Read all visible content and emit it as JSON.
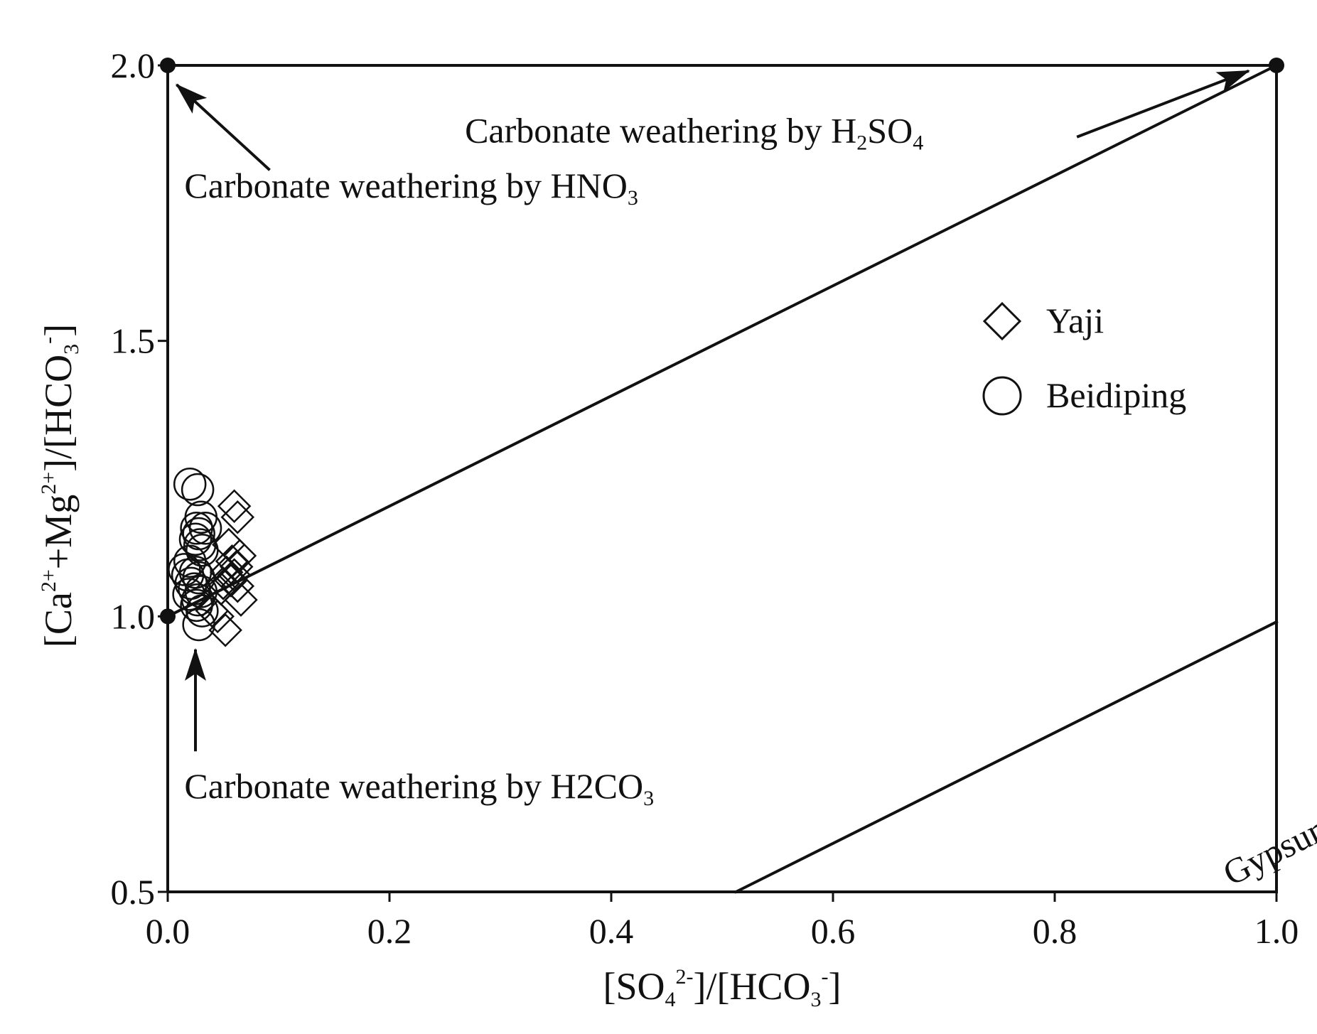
{
  "chart_data": {
    "type": "scatter",
    "xlabel": {
      "parts": [
        {
          "t": "[SO"
        },
        {
          "t": "4",
          "pos": "sub"
        },
        {
          "t": "2-",
          "pos": "sup"
        },
        {
          "t": "]/[HCO"
        },
        {
          "t": "3",
          "pos": "sub"
        },
        {
          "t": "-",
          "pos": "sup"
        },
        {
          "t": "]"
        }
      ]
    },
    "ylabel": {
      "parts": [
        {
          "t": "[Ca"
        },
        {
          "t": "2+",
          "pos": "sup"
        },
        {
          "t": "+Mg"
        },
        {
          "t": "2+",
          "pos": "sup"
        },
        {
          "t": "]/[HCO"
        },
        {
          "t": "3",
          "pos": "sub"
        },
        {
          "t": "-",
          "pos": "sup"
        },
        {
          "t": "]"
        }
      ]
    },
    "xlim": [
      0.0,
      1.0
    ],
    "ylim": [
      0.5,
      2.0
    ],
    "x_ticks": [
      {
        "value": 0.0,
        "label": "0.0"
      },
      {
        "value": 0.2,
        "label": "0.2"
      },
      {
        "value": 0.4,
        "label": "0.4"
      },
      {
        "value": 0.6,
        "label": "0.6"
      },
      {
        "value": 0.8,
        "label": "0.8"
      },
      {
        "value": 1.0,
        "label": "1.0"
      }
    ],
    "y_ticks": [
      {
        "value": 0.5,
        "label": "0.5"
      },
      {
        "value": 1.0,
        "label": "1.0"
      },
      {
        "value": 1.5,
        "label": "1.5"
      },
      {
        "value": 2.0,
        "label": "2.0"
      }
    ],
    "grid": false,
    "legend_position": "right",
    "series": [
      {
        "name": "Yaji",
        "marker": "diamond",
        "points": [
          [
            0.06,
            1.2
          ],
          [
            0.063,
            1.18
          ],
          [
            0.055,
            1.13
          ],
          [
            0.065,
            1.11
          ],
          [
            0.058,
            1.1
          ],
          [
            0.062,
            1.09
          ],
          [
            0.053,
            1.08
          ],
          [
            0.06,
            1.075
          ],
          [
            0.057,
            1.065
          ],
          [
            0.05,
            1.06
          ],
          [
            0.063,
            1.055
          ],
          [
            0.048,
            1.05
          ],
          [
            0.066,
            1.03
          ],
          [
            0.04,
            1.01
          ],
          [
            0.045,
            1.0
          ],
          [
            0.052,
            0.975
          ]
        ]
      },
      {
        "name": "Beidiping",
        "marker": "circle",
        "points": [
          [
            0.02,
            1.24
          ],
          [
            0.027,
            1.23
          ],
          [
            0.03,
            1.18
          ],
          [
            0.026,
            1.16
          ],
          [
            0.034,
            1.16
          ],
          [
            0.028,
            1.15
          ],
          [
            0.025,
            1.14
          ],
          [
            0.029,
            1.13
          ],
          [
            0.031,
            1.12
          ],
          [
            0.02,
            1.1
          ],
          [
            0.015,
            1.085
          ],
          [
            0.025,
            1.08
          ],
          [
            0.018,
            1.075
          ],
          [
            0.028,
            1.07
          ],
          [
            0.021,
            1.06
          ],
          [
            0.024,
            1.05
          ],
          [
            0.03,
            1.045
          ],
          [
            0.019,
            1.04
          ],
          [
            0.027,
            1.03
          ],
          [
            0.026,
            1.02
          ],
          [
            0.031,
            1.01
          ],
          [
            0.028,
            0.985
          ]
        ]
      }
    ],
    "lines": [
      {
        "from": [
          0.0,
          1.0
        ],
        "to": [
          1.0,
          2.0
        ]
      },
      {
        "from": [
          0.0,
          2.0
        ],
        "to": [
          1.0,
          2.0
        ]
      },
      {
        "from": [
          1.0,
          0.5
        ],
        "to": [
          1.0,
          2.0
        ]
      },
      {
        "from": [
          0.5125,
          0.5
        ],
        "to": [
          1.0,
          0.99
        ]
      }
    ],
    "endpoints": [
      [
        0.0,
        1.0
      ],
      [
        0.0,
        2.0
      ],
      [
        1.0,
        2.0
      ]
    ],
    "annotations": [
      {
        "id": "h2so4",
        "parts": [
          {
            "t": "Carbonate weathering by H"
          },
          {
            "t": "2",
            "pos": "sub"
          },
          {
            "t": "SO"
          },
          {
            "t": "4",
            "pos": "sub"
          }
        ],
        "anchor": [
          0.268,
          1.86
        ],
        "arrow_from": [
          0.82,
          1.87
        ],
        "arrow_to": [
          0.975,
          1.99
        ]
      },
      {
        "id": "hno3",
        "parts": [
          {
            "t": "Carbonate weathering by HNO"
          },
          {
            "t": "3",
            "pos": "sub"
          }
        ],
        "anchor": [
          0.015,
          1.76
        ],
        "arrow_from": [
          0.092,
          1.81
        ],
        "arrow_to": [
          0.008,
          1.965
        ]
      },
      {
        "id": "h2co3",
        "parts": [
          {
            "t": "Carbonate weathering by H"
          },
          {
            "t": "2"
          },
          {
            "t": "CO"
          },
          {
            "t": "3",
            "pos": "sub"
          }
        ],
        "anchor": [
          0.015,
          0.67
        ],
        "arrow_from": [
          0.025,
          0.755
        ],
        "arrow_to": [
          0.025,
          0.94
        ]
      },
      {
        "id": "gypsum",
        "parts": [
          {
            "t": "Gypsum dissolution line"
          }
        ],
        "anchor": [
          0.6,
          0.62
        ],
        "rotate_along": [
          [
            0.5125,
            0.5
          ],
          [
            1.0,
            0.99
          ]
        ]
      }
    ]
  }
}
